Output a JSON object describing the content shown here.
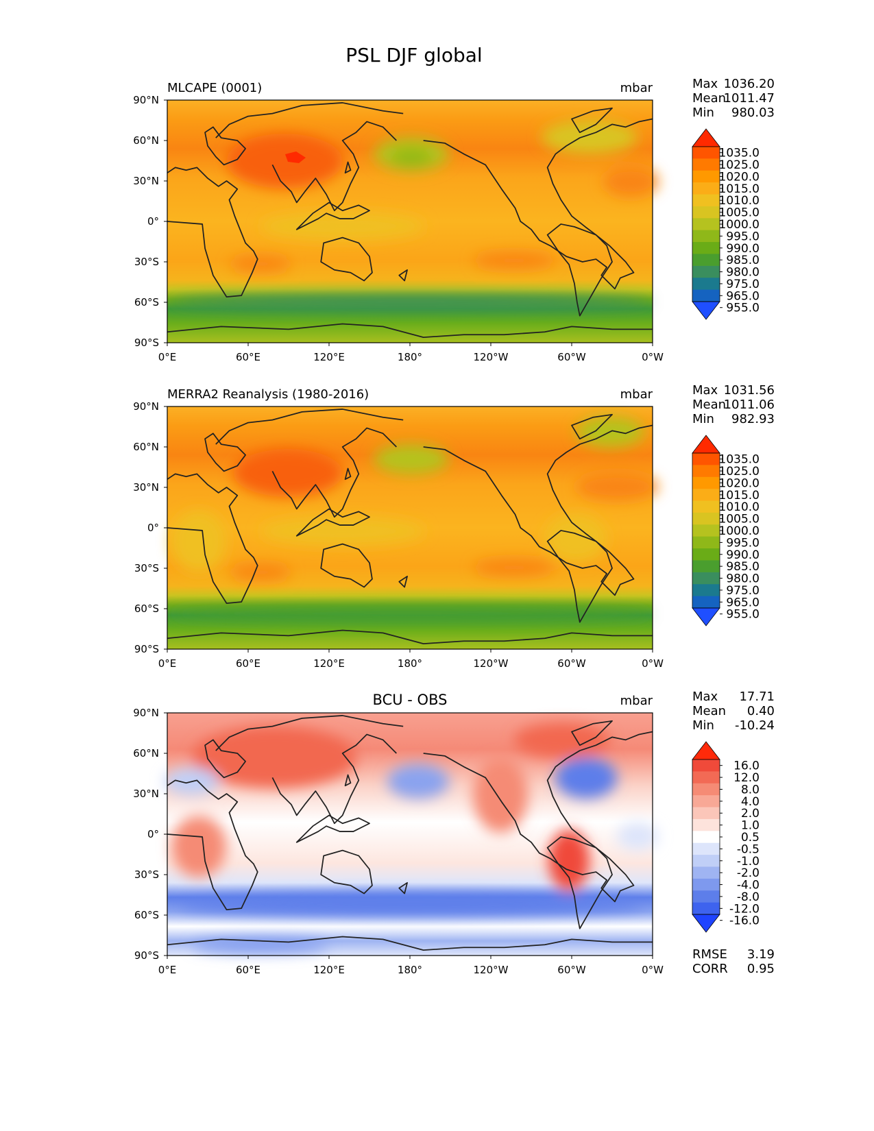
{
  "figure_title": "PSL DJF global",
  "chart_data": [
    {
      "type": "heatmap",
      "title": "MLCAPE (0001)",
      "units": "mbar",
      "stats": {
        "max_label": "Max",
        "max": "1036.20",
        "mean_label": "Mean",
        "mean": "1011.47",
        "min_label": "Min",
        "min": "980.03"
      },
      "xticks": [
        "0°E",
        "60°E",
        "120°E",
        "180°",
        "120°W",
        "60°W",
        "0°W"
      ],
      "yticks": [
        "90°N",
        "60°N",
        "30°N",
        "0°",
        "30°S",
        "60°S",
        "90°S"
      ],
      "xlim": [
        0,
        360
      ],
      "ylim": [
        -90,
        90
      ],
      "colorbar": {
        "extend": "both",
        "labels": [
          "1035.0",
          "1025.0",
          "1020.0",
          "1015.0",
          "1010.0",
          "1005.0",
          "1000.0",
          "995.0",
          "990.0",
          "985.0",
          "980.0",
          "975.0",
          "965.0",
          "955.0"
        ],
        "colors": [
          "#ff2a00",
          "#ff5500",
          "#ff7a00",
          "#ff9900",
          "#fbad17",
          "#f0c020",
          "#d9c421",
          "#b5c21f",
          "#8fb819",
          "#6aac17",
          "#4a9e2e",
          "#3a8e5e",
          "#1b7a8e",
          "#1563c0",
          "#1f4fff"
        ]
      }
    },
    {
      "type": "heatmap",
      "title": "MERRA2 Reanalysis (1980-2016)",
      "units": "mbar",
      "stats": {
        "max_label": "Max",
        "max": "1031.56",
        "mean_label": "Mean",
        "mean": "1011.06",
        "min_label": "Min",
        "min": "982.93"
      },
      "xticks": [
        "0°E",
        "60°E",
        "120°E",
        "180°",
        "120°W",
        "60°W",
        "0°W"
      ],
      "yticks": [
        "90°N",
        "60°N",
        "30°N",
        "0°",
        "30°S",
        "60°S",
        "90°S"
      ],
      "xlim": [
        0,
        360
      ],
      "ylim": [
        -90,
        90
      ],
      "colorbar": {
        "extend": "both",
        "labels": [
          "1035.0",
          "1025.0",
          "1020.0",
          "1015.0",
          "1010.0",
          "1005.0",
          "1000.0",
          "995.0",
          "990.0",
          "985.0",
          "980.0",
          "975.0",
          "965.0",
          "955.0"
        ],
        "colors": [
          "#ff2a00",
          "#ff5500",
          "#ff7a00",
          "#ff9900",
          "#fbad17",
          "#f0c020",
          "#d9c421",
          "#b5c21f",
          "#8fb819",
          "#6aac17",
          "#4a9e2e",
          "#3a8e5e",
          "#1b7a8e",
          "#1563c0",
          "#1f4fff"
        ]
      }
    },
    {
      "type": "heatmap",
      "title": "BCU - OBS",
      "units": "mbar",
      "stats": {
        "max_label": "Max",
        "max": "17.71",
        "mean_label": "Mean",
        "mean": "0.40",
        "min_label": "Min",
        "min": "-10.24"
      },
      "rmse_label": "RMSE",
      "rmse": "3.19",
      "corr_label": "CORR",
      "corr": "0.95",
      "xticks": [
        "0°E",
        "60°E",
        "120°E",
        "180°",
        "120°W",
        "60°W",
        "0°W"
      ],
      "yticks": [
        "90°N",
        "60°N",
        "30°N",
        "0°",
        "30°S",
        "60°S",
        "90°S"
      ],
      "xlim": [
        0,
        360
      ],
      "ylim": [
        -90,
        90
      ],
      "colorbar": {
        "extend": "both",
        "labels": [
          "16.0",
          "12.0",
          "8.0",
          "4.0",
          "2.0",
          "1.0",
          "0.5",
          "-0.5",
          "-1.0",
          "-2.0",
          "-4.0",
          "-8.0",
          "-12.0",
          "-16.0"
        ],
        "colors": [
          "#ff2a0a",
          "#f04a3a",
          "#f26a55",
          "#f58b75",
          "#f8a896",
          "#fbc6b9",
          "#fde3dc",
          "#ffffff",
          "#dde5fb",
          "#c0cff7",
          "#9fb4f2",
          "#7e99ee",
          "#5d7eea",
          "#3e63ee",
          "#1f44ff"
        ]
      }
    }
  ]
}
